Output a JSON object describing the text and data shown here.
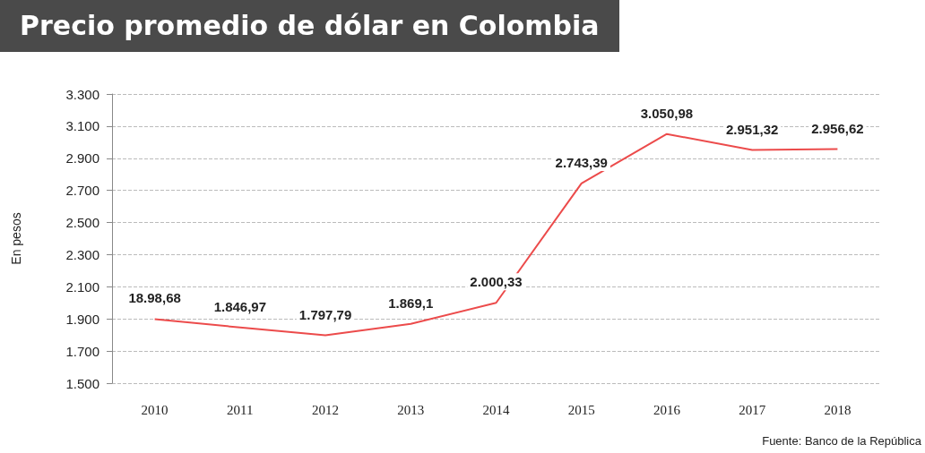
{
  "chart_data": {
    "type": "line",
    "title": "Precio promedio de dólar en Colombia",
    "ylabel": "En pesos",
    "categories": [
      "2010",
      "2011",
      "2012",
      "2013",
      "2014",
      "2015",
      "2016",
      "2017",
      "2018"
    ],
    "values": [
      1898.68,
      1846.97,
      1797.79,
      1869.1,
      2000.33,
      2743.39,
      3050.98,
      2951.32,
      2956.62
    ],
    "value_labels": [
      "18.98,68",
      "1.846,97",
      "1.797,79",
      "1.869,1",
      "2.000,33",
      "2.743,39",
      "3.050,98",
      "2.951,32",
      "2.956,62"
    ],
    "color": "#ec4b4b",
    "ylim": [
      1500,
      3300
    ],
    "yticks": [
      {
        "value": 1500,
        "label": "1.500"
      },
      {
        "value": 1700,
        "label": "1.700"
      },
      {
        "value": 1900,
        "label": "1.900"
      },
      {
        "value": 2100,
        "label": "2.100"
      },
      {
        "value": 2300,
        "label": "2.300"
      },
      {
        "value": 2500,
        "label": "2.500"
      },
      {
        "value": 2700,
        "label": "2.700"
      },
      {
        "value": 2900,
        "label": "2.900"
      },
      {
        "value": 3100,
        "label": "3.100"
      },
      {
        "value": 3300,
        "label": "3.300"
      }
    ],
    "grid": "y",
    "marker": "none",
    "line_style": "solid",
    "annotations": [
      "Fuente: Banco de la República"
    ]
  }
}
